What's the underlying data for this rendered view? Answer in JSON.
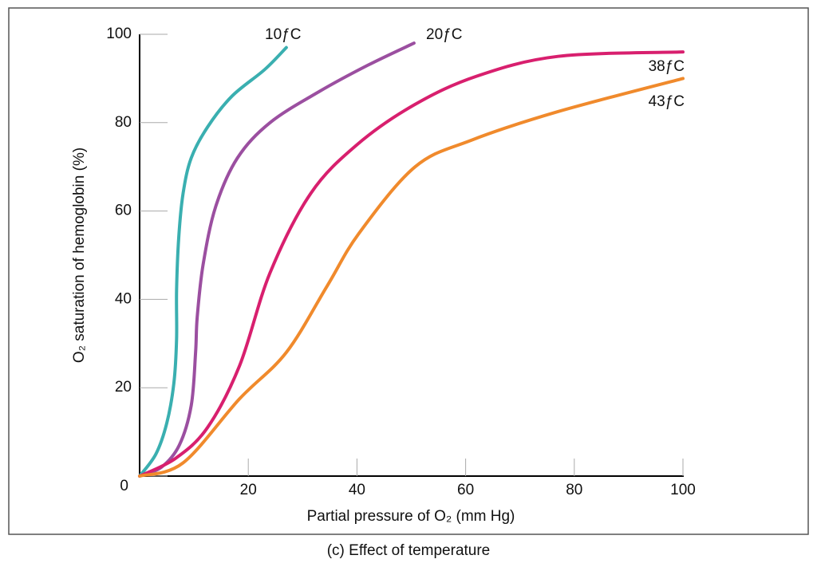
{
  "chart_data": {
    "type": "line",
    "caption": "(c) Effect of temperature",
    "xlabel": "Partial pressure of O₂ (mm Hg)",
    "ylabel": "O₂ saturation of hemoglobin (%)",
    "xlim": [
      0,
      100
    ],
    "ylim": [
      0,
      100
    ],
    "xticks": [
      20,
      40,
      60,
      80,
      100
    ],
    "yticks": [
      0,
      20,
      40,
      60,
      80,
      100
    ],
    "series": [
      {
        "name": "10ƒC",
        "color": "#3aafb0",
        "x": [
          0,
          3,
          5,
          6.3,
          6.8,
          6.8,
          7.2,
          8,
          9.5,
          12.5,
          17,
          23,
          27
        ],
        "values": [
          0,
          5,
          12,
          21,
          31,
          42,
          54,
          64,
          72,
          79,
          86,
          92,
          97
        ]
      },
      {
        "name": "20ƒC",
        "color": "#9b4fa0",
        "x": [
          0,
          4,
          7.3,
          9.5,
          10.3,
          10.6,
          11.7,
          14,
          18,
          24,
          33,
          42,
          50.5
        ],
        "values": [
          0,
          2,
          7,
          16,
          28,
          36,
          48,
          61,
          72,
          80,
          87,
          93,
          98
        ]
      },
      {
        "name": "38ƒC",
        "color": "#d81f6e",
        "x": [
          0,
          6.6,
          12.5,
          18.4,
          24,
          31.5,
          40,
          50.5,
          62,
          77,
          100
        ],
        "values": [
          0,
          4,
          11,
          25,
          46,
          64,
          75,
          84,
          90.5,
          95,
          96
        ]
      },
      {
        "name": "43ƒC",
        "color": "#f08a2c",
        "x": [
          0,
          8,
          18.4,
          27,
          34.5,
          40.4,
          50.7,
          61,
          77,
          100
        ],
        "values": [
          0,
          3,
          17.5,
          28,
          43,
          55,
          70,
          76,
          82.5,
          90
        ]
      }
    ]
  }
}
